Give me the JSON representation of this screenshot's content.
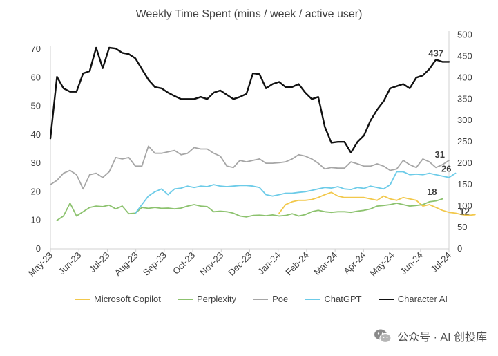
{
  "chart_data": {
    "type": "line",
    "title": "Weekly Time Spent (mins / week / active user)",
    "x_tick_labels": [
      "May-23",
      "Jun-23",
      "Jul-23",
      "Aug-23",
      "Sep-23",
      "Oct-23",
      "Nov-23",
      "Dec-23",
      "Jan-24",
      "Feb-24",
      "Mar-24",
      "Apr-24",
      "May-24",
      "Jun-24",
      "Jul-24"
    ],
    "x_range": [
      0,
      61
    ],
    "y_left_ticks": [
      "0",
      "10",
      "20",
      "30",
      "40",
      "50",
      "60",
      "70"
    ],
    "y_left_range": [
      0,
      75
    ],
    "y_right_ticks": [
      "0",
      "50",
      "100",
      "150",
      "200",
      "250",
      "300",
      "350",
      "400",
      "450",
      "500"
    ],
    "y_right_range": [
      0,
      500
    ],
    "series": [
      {
        "name": "Microsoft Copilot",
        "color": "#f2c84b",
        "axis": "left",
        "start": 35,
        "values": [
          12.5,
          15.5,
          16.5,
          17,
          17,
          17.3,
          18,
          19,
          19.8,
          18.5,
          18,
          18,
          18,
          18,
          17.5,
          17,
          18.5,
          17.5,
          17,
          18,
          17.5,
          17,
          15,
          15.5,
          14.5,
          13.5,
          12.8,
          12.5,
          12,
          11.7,
          12
        ],
        "end_label": "12"
      },
      {
        "name": "Perplexity",
        "color": "#8cc26e",
        "axis": "left",
        "start": 1,
        "values": [
          10,
          11.5,
          16,
          11.5,
          13,
          14.5,
          15,
          14.8,
          15.3,
          14,
          15,
          12.3,
          12.5,
          14.5,
          14.2,
          14.5,
          14.2,
          14.3,
          14,
          14.3,
          15,
          15.5,
          15,
          14.8,
          13,
          13.2,
          13,
          12.5,
          11.5,
          11.2,
          11.7,
          11.8,
          11.6,
          11.9,
          11.5,
          11.7,
          12.3,
          11.5,
          12,
          13,
          13.5,
          13,
          12.8,
          13,
          13,
          12.8,
          13.2,
          13.5,
          14,
          15,
          15.2,
          15.5,
          16,
          15.5,
          15,
          15.2,
          15.5,
          16.5,
          16.8,
          17.5
        ],
        "end_label": "18"
      },
      {
        "name": "Poe",
        "color": "#a6a6a6",
        "axis": "left",
        "start": 0,
        "values": [
          22.5,
          24,
          26.5,
          27.5,
          26,
          21,
          26,
          26.5,
          25,
          27,
          32,
          31.5,
          32,
          29,
          29,
          36,
          33.5,
          33.5,
          34,
          34.5,
          33,
          33.5,
          35.5,
          35,
          35,
          33.5,
          32.5,
          29,
          28.5,
          31,
          30.5,
          31,
          31.5,
          30,
          30,
          30.2,
          30.5,
          31.5,
          33,
          32.5,
          31.5,
          30,
          28,
          28.5,
          28.3,
          28.3,
          30.5,
          29.8,
          29,
          29,
          29.8,
          29,
          27.5,
          28,
          31,
          29.5,
          28.5,
          31.5,
          30.5,
          28.5,
          29.5,
          31
        ],
        "end_label": "31"
      },
      {
        "name": "ChatGPT",
        "color": "#6ccbe8",
        "axis": "left",
        "start": 13,
        "values": [
          12.5,
          15.5,
          18.5,
          20,
          21,
          19,
          21,
          21.3,
          22,
          21.5,
          22,
          21.8,
          22.5,
          22,
          21.8,
          22,
          22.2,
          22.2,
          22,
          21.5,
          19,
          18.5,
          19,
          19.5,
          19.5,
          19.8,
          20,
          20.5,
          21,
          21.5,
          21.3,
          21.8,
          21,
          20.8,
          21.5,
          21.2,
          22,
          21.5,
          21,
          22.5,
          27,
          27,
          26,
          26.2,
          26,
          26.5,
          26,
          25.5,
          25,
          26.5
        ],
        "end_label": "26"
      },
      {
        "name": "Character AI",
        "color": "#111111",
        "axis": "right",
        "start": 0,
        "values": [
          258,
          402,
          375,
          367,
          367,
          410,
          415,
          470,
          422,
          470,
          468,
          458,
          455,
          445,
          420,
          395,
          378,
          375,
          365,
          357,
          350,
          350,
          350,
          355,
          350,
          365,
          370,
          360,
          350,
          355,
          362,
          410,
          408,
          375,
          385,
          390,
          378,
          378,
          385,
          365,
          350,
          355,
          285,
          248,
          250,
          250,
          225,
          250,
          265,
          300,
          325,
          345,
          375,
          380,
          385,
          375,
          400,
          405,
          420,
          442,
          437,
          437
        ],
        "end_label": "437"
      }
    ]
  },
  "watermark": {
    "text": "公众号 · AI 创投库",
    "icon": "wechat-icon"
  }
}
